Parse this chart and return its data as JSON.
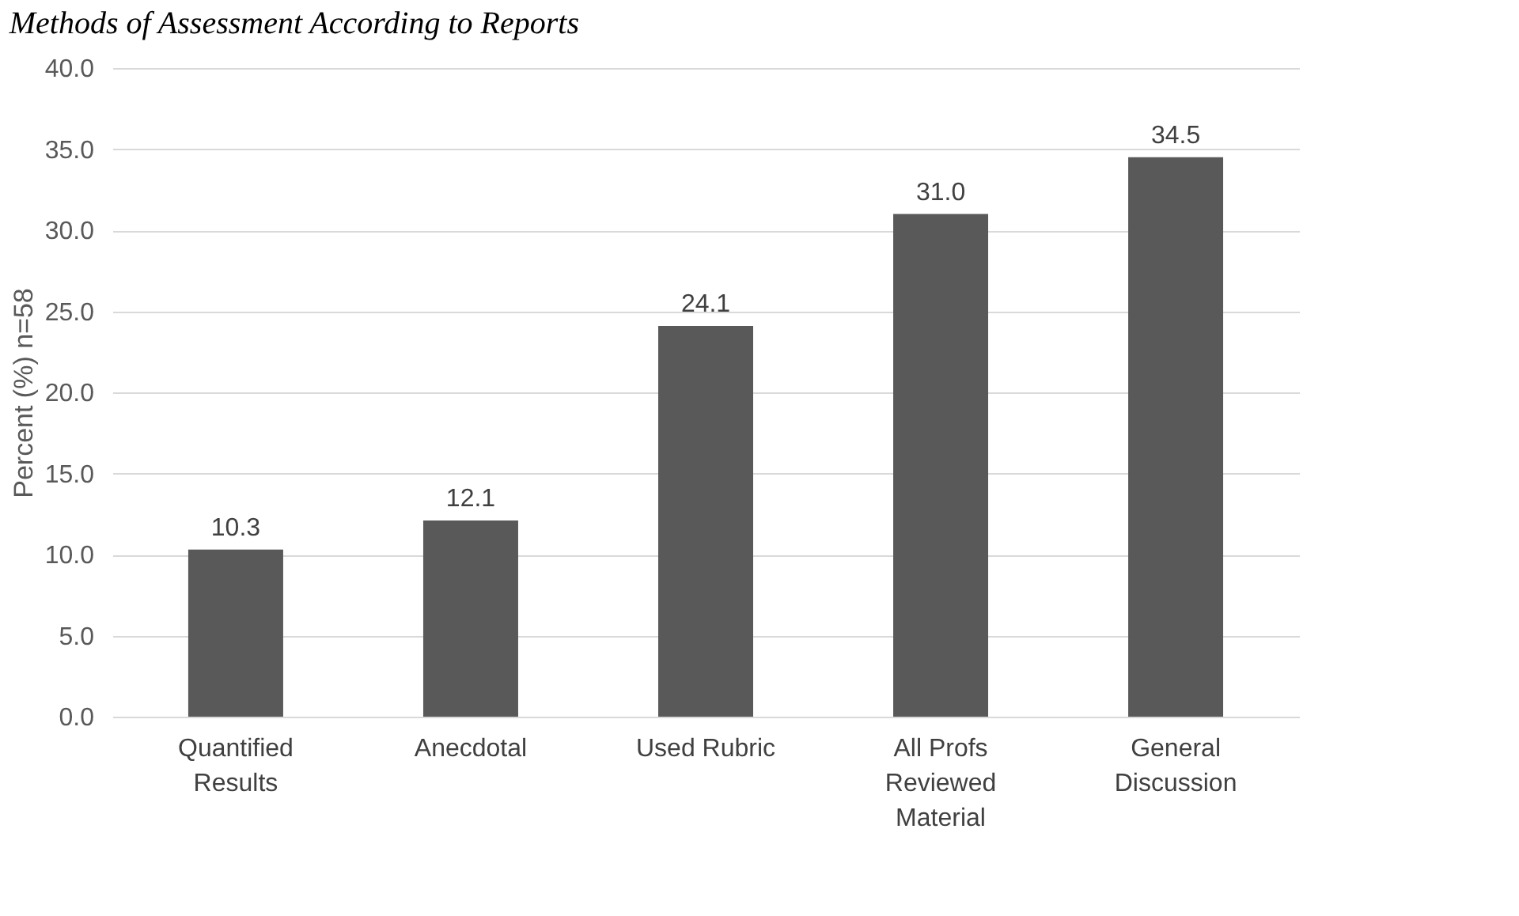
{
  "chart_data": {
    "type": "bar",
    "title": "Methods of Assessment According to Reports",
    "ylabel": "Percent (%) n=58",
    "categories": [
      "Quantified Results",
      "Anecdotal",
      "Used Rubric",
      "All Profs Reviewed Material",
      "General Discussion"
    ],
    "values": [
      10.3,
      12.1,
      24.1,
      31.0,
      34.5
    ],
    "value_labels": [
      "10.3",
      "12.1",
      "24.1",
      "31.0",
      "34.5"
    ],
    "color": "#595959",
    "ylim": [
      0,
      40
    ],
    "yticks": [
      {
        "value": 0,
        "label": "0.0"
      },
      {
        "value": 5,
        "label": "5.0"
      },
      {
        "value": 10,
        "label": "10.0"
      },
      {
        "value": 15,
        "label": "15.0"
      },
      {
        "value": 20,
        "label": "20.0"
      },
      {
        "value": 25,
        "label": "25.0"
      },
      {
        "value": 30,
        "label": "30.0"
      },
      {
        "value": 35,
        "label": "35.0"
      },
      {
        "value": 40,
        "label": "40.0"
      }
    ],
    "grid": "y"
  }
}
